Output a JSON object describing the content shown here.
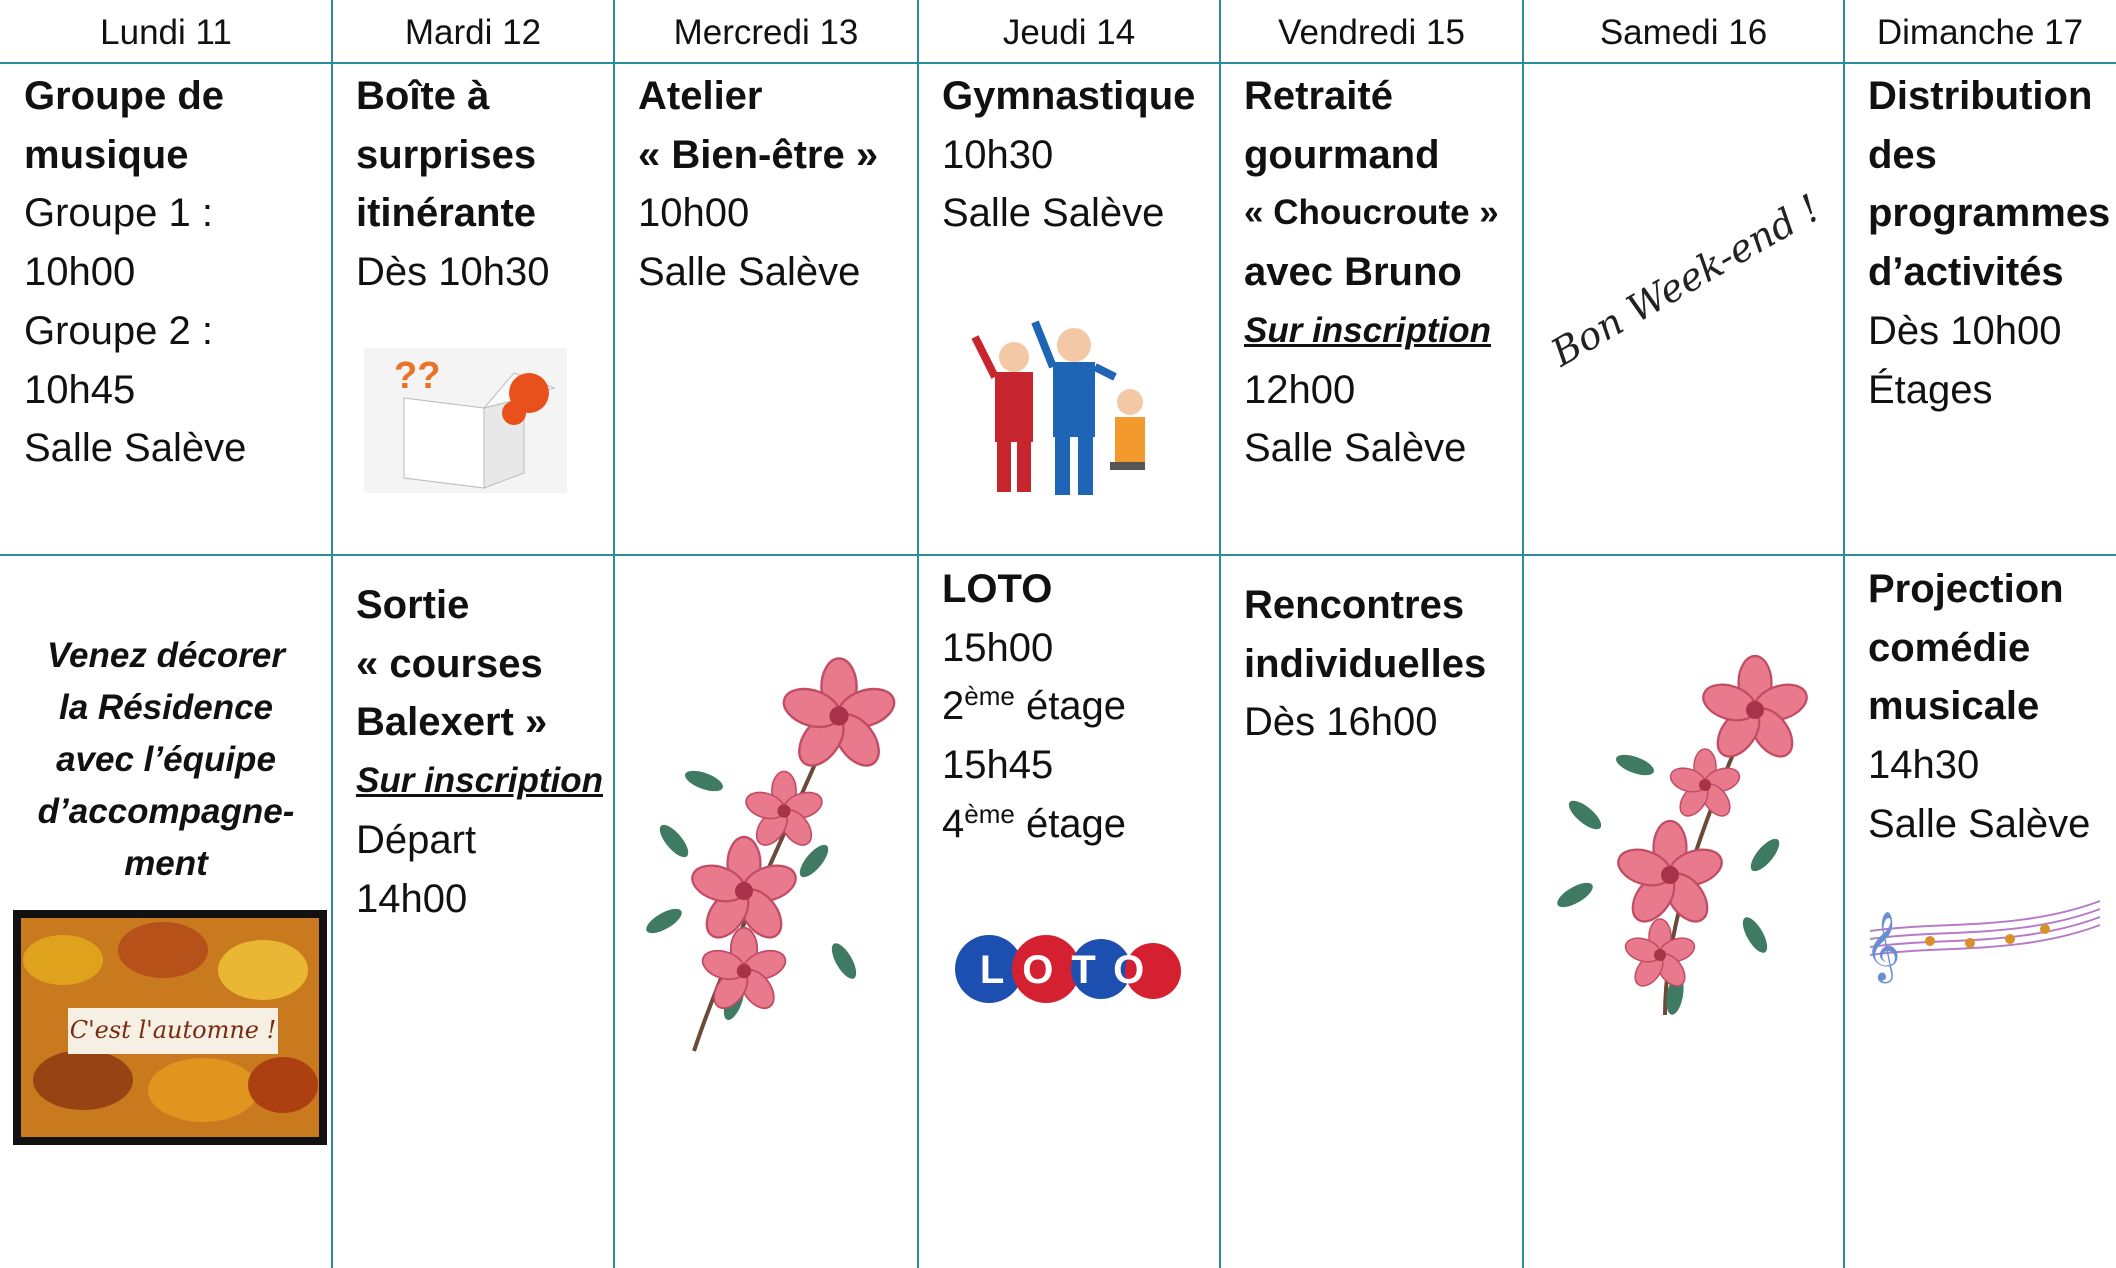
{
  "header": {
    "days": [
      "Lundi 11",
      "Mardi 12",
      "Mercredi 13",
      "Jeudi 14",
      "Vendredi 15",
      "Samedi 16",
      "Dimanche 17"
    ]
  },
  "rows": [
    [
      {
        "lines": [
          {
            "text": "Groupe de",
            "style": "b"
          },
          {
            "text": "musique",
            "style": "b"
          },
          {
            "text": "Groupe 1 :",
            "style": "n"
          },
          {
            "text": "10h00",
            "style": "n"
          },
          {
            "text": "Groupe 2 :",
            "style": "n"
          },
          {
            "text": "10h45",
            "style": "n"
          },
          {
            "text": "Salle Salève",
            "style": "n"
          }
        ]
      },
      {
        "lines": [
          {
            "text": "Boîte à",
            "style": "b"
          },
          {
            "text": "surprises",
            "style": "b"
          },
          {
            "text": "itinérante",
            "style": "b"
          },
          {
            "text": "Dès 10h30",
            "style": "n"
          }
        ]
      },
      {
        "lines": [
          {
            "text": "Atelier",
            "style": "b"
          },
          {
            "text": "« Bien-être »",
            "style": "b"
          },
          {
            "text": "10h00",
            "style": "n"
          },
          {
            "text": "Salle Salève",
            "style": "n"
          }
        ]
      },
      {
        "lines": [
          {
            "text": "Gymnastique",
            "style": "b"
          },
          {
            "text": "10h30",
            "style": "n"
          },
          {
            "text": "Salle Salève",
            "style": "n"
          }
        ]
      },
      {
        "lines": [
          {
            "text": "Retraité",
            "style": "b"
          },
          {
            "text": "gourmand",
            "style": "b"
          },
          {
            "text": "« Choucroute »",
            "style": "bs"
          },
          {
            "text": "avec Bruno",
            "style": "b"
          },
          {
            "text": "Sur inscription",
            "style": "u"
          },
          {
            "text": "12h00",
            "style": "n"
          },
          {
            "text": "Salle Salève",
            "style": "n"
          }
        ]
      },
      {
        "lines": [],
        "caption": "Bon Week-end !"
      },
      {
        "lines": [
          {
            "text": "Distribution",
            "style": "b"
          },
          {
            "text": "des",
            "style": "b"
          },
          {
            "text": "programmes",
            "style": "b"
          },
          {
            "text": "d’activités",
            "style": "b"
          },
          {
            "text": "Dès 10h00",
            "style": "n"
          },
          {
            "text": "Étages",
            "style": "n"
          }
        ]
      }
    ],
    [
      {
        "lines": [
          {
            "text": "Venez décorer",
            "style": "i"
          },
          {
            "text": "la Résidence",
            "style": "i"
          },
          {
            "text": "avec l’équipe",
            "style": "i"
          },
          {
            "text": "d’accompagne-",
            "style": "i"
          },
          {
            "text": "ment",
            "style": "i"
          }
        ],
        "caption": "C'est l'automne !"
      },
      {
        "lines": [
          {
            "text": "Sortie",
            "style": "b"
          },
          {
            "text": "« courses",
            "style": "b"
          },
          {
            "text": "Balexert »",
            "style": "b"
          },
          {
            "text": "Sur inscription",
            "style": "u"
          },
          {
            "text": "Départ",
            "style": "n"
          },
          {
            "text": "14h00",
            "style": "n"
          }
        ]
      },
      {
        "lines": []
      },
      {
        "lines": [
          {
            "text": "LOTO",
            "style": "b"
          },
          {
            "text": "15h00",
            "style": "n"
          },
          {
            "text": "2",
            "sup": "ème",
            "after": " étage",
            "style": "n"
          },
          {
            "text": "15h45",
            "style": "n"
          },
          {
            "text": "4",
            "sup": "ème",
            "after": " étage",
            "style": "n"
          }
        ],
        "caption": "LOTO"
      },
      {
        "lines": [
          {
            "text": "Rencontres",
            "style": "b"
          },
          {
            "text": "individuelles",
            "style": "b"
          },
          {
            "text": "Dès 16h00",
            "style": "n"
          }
        ]
      },
      {
        "lines": []
      },
      {
        "lines": [
          {
            "text": "Projection",
            "style": "b"
          },
          {
            "text": "comédie",
            "style": "b"
          },
          {
            "text": "musicale",
            "style": "b"
          },
          {
            "text": "14h30",
            "style": "n"
          },
          {
            "text": "Salle Salève",
            "style": "n"
          }
        ]
      }
    ]
  ]
}
